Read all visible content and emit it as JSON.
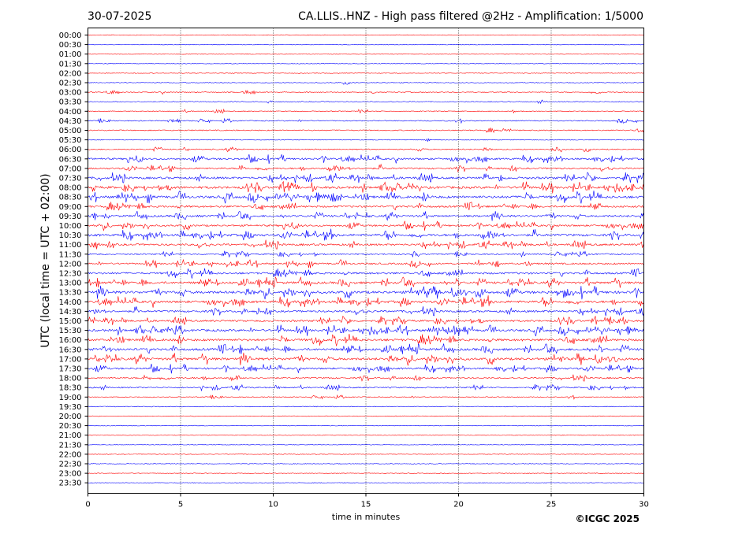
{
  "header": {
    "date": "30-07-2025",
    "title": "CA.LLIS..HNZ - High pass filtered @2Hz - Amplification: 1/5000"
  },
  "footer": {
    "copyright": "©ICGC 2025"
  },
  "chart_data": {
    "type": "seismogram",
    "title": "CA.LLIS..HNZ - High pass filtered @2Hz - Amplification: 1/5000",
    "xlabel": "time in minutes",
    "ylabel": "UTC (local time = UTC + 02:00)",
    "xlim": [
      0,
      30
    ],
    "x_ticks": [
      0,
      5,
      10,
      15,
      20,
      25,
      30
    ],
    "x_tick_labels": [
      "0",
      "5",
      "10",
      "15",
      "20",
      "25",
      "30"
    ],
    "vertical_gridlines": [
      5,
      10,
      15,
      20,
      25
    ],
    "rows": [
      "00:00",
      "00:30",
      "01:00",
      "01:30",
      "02:00",
      "02:30",
      "03:00",
      "03:30",
      "04:00",
      "04:30",
      "05:00",
      "05:30",
      "06:00",
      "06:30",
      "07:00",
      "07:30",
      "08:00",
      "08:30",
      "09:00",
      "09:30",
      "10:00",
      "10:30",
      "11:00",
      "11:30",
      "12:00",
      "12:30",
      "13:00",
      "13:30",
      "14:00",
      "14:30",
      "15:00",
      "15:30",
      "16:00",
      "16:30",
      "17:00",
      "17:30",
      "18:00",
      "18:30",
      "19:00",
      "19:30",
      "20:00",
      "20:30",
      "21:00",
      "21:30",
      "22:00",
      "22:30",
      "23:00",
      "23:30"
    ],
    "trace_colors": [
      "#ff0000",
      "#0000ff"
    ],
    "activity": [
      0,
      0,
      0,
      0,
      0,
      0.05,
      0.1,
      0.1,
      0.1,
      0.15,
      0.2,
      0.05,
      0.2,
      0.55,
      0.45,
      0.7,
      0.8,
      0.85,
      0.6,
      0.6,
      0.55,
      0.8,
      0.6,
      0.3,
      0.5,
      0.6,
      0.75,
      0.9,
      0.8,
      0.6,
      0.55,
      0.75,
      0.8,
      0.75,
      0.85,
      0.55,
      0.35,
      0.3,
      0.1,
      0.05,
      0,
      0,
      0,
      0,
      0,
      0,
      0,
      0
    ]
  }
}
